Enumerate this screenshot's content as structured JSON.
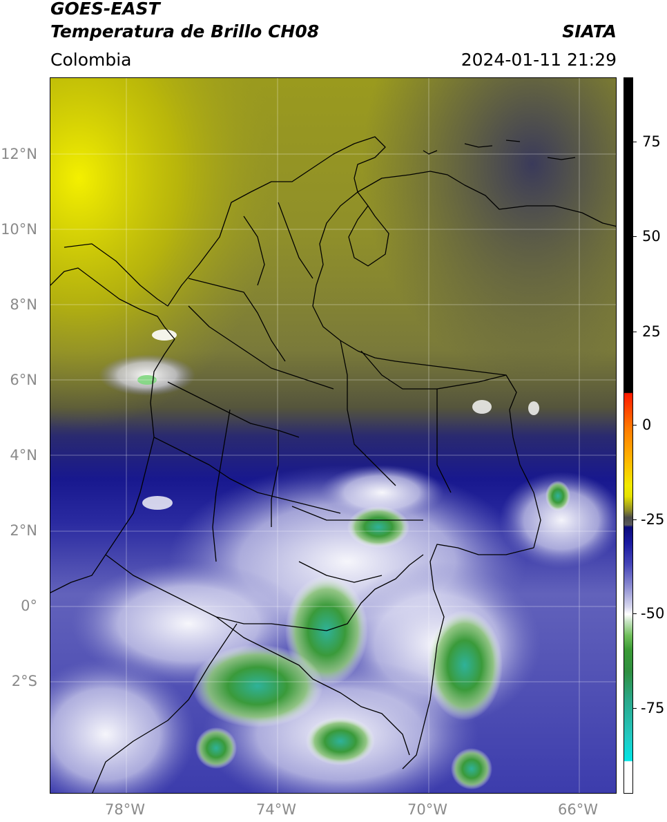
{
  "header": {
    "satellite": "GOES-EAST",
    "product": "Temperatura de Brillo CH08",
    "region": "Colombia",
    "organization": "SIATA",
    "datetime": "2024-01-11 21:29"
  },
  "map": {
    "lat_labels": [
      "12°N",
      "10°N",
      "8°N",
      "6°N",
      "4°N",
      "2°N",
      "0°",
      "2°S"
    ],
    "lon_labels": [
      "78°W",
      "74°W",
      "70°W",
      "66°W"
    ],
    "lon_range": [
      -80,
      -65
    ],
    "lat_range": [
      -5,
      14
    ]
  },
  "colorbar": {
    "labels": [
      "75",
      "50",
      "25",
      "0",
      "-25",
      "-50",
      "-75"
    ],
    "colors": {
      "warm_black": "#000000",
      "red": "#ff1a00",
      "orange": "#ff7a00",
      "yellow": "#f2ea00",
      "gray": "#4a4a4a",
      "navy": "#0b0b7a",
      "lavender": "#8a8ad0",
      "white": "#ffffff",
      "green": "#3a9a35",
      "teal": "#2aa88a",
      "cyan": "#00e5e5"
    }
  }
}
